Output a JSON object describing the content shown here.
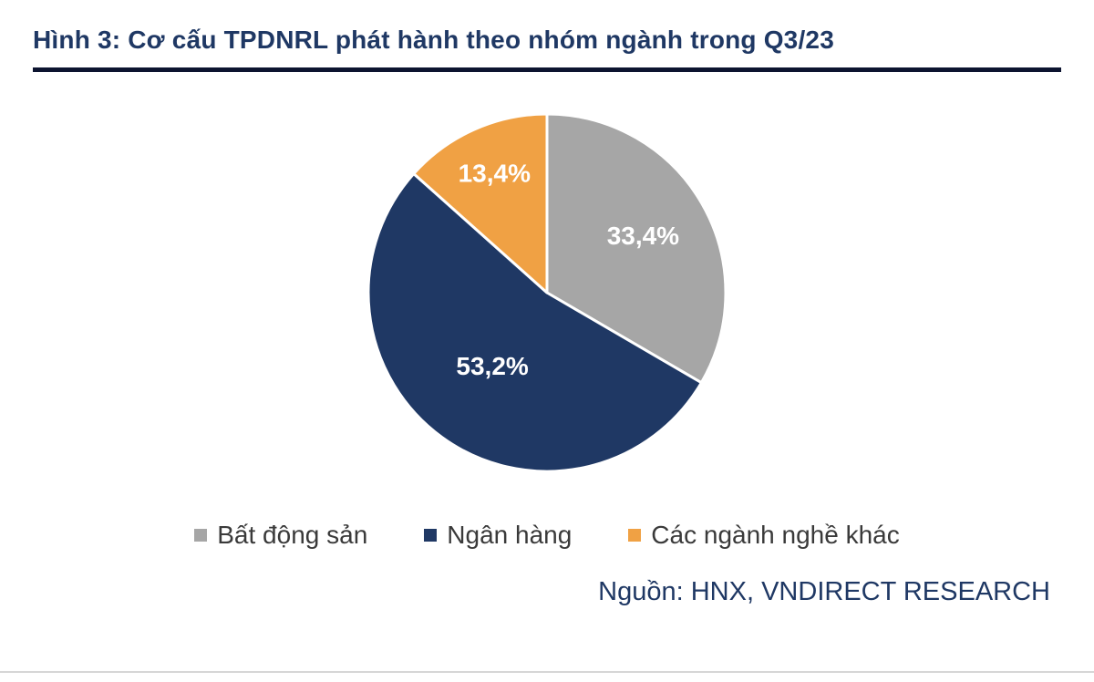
{
  "title": "Hình 3: Cơ cấu TPDNRL phát hành theo nhóm ngành trong Q3/23",
  "source": "Nguồn: HNX, VNDIRECT RESEARCH",
  "chart_data": {
    "type": "pie",
    "title": "Cơ cấu TPDNRL phát hành theo nhóm ngành trong Q3/23",
    "start_angle_deg": 0,
    "direction": "clockwise",
    "legend_position": "bottom",
    "data_label_color": "#ffffff",
    "slices": [
      {
        "label": "Bất động sản",
        "value": 33.4,
        "display": "33,4%",
        "color": "#a6a6a6",
        "label_radius": 0.62
      },
      {
        "label": "Ngân hàng",
        "value": 53.2,
        "display": "53,2%",
        "color": "#1f3864",
        "label_radius": 0.52
      },
      {
        "label": "Các ngành nghề khác",
        "value": 13.4,
        "display": "13,4%",
        "color": "#f0a144",
        "label_radius": 0.72
      }
    ]
  }
}
